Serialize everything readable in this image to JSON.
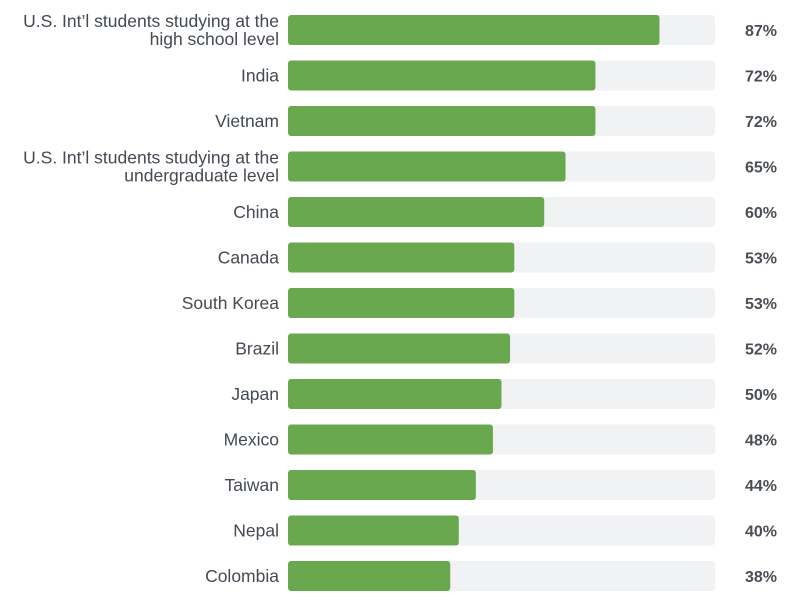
{
  "chart_data": {
    "type": "bar",
    "orientation": "horizontal",
    "categories": [
      [
        "U.S. Int’l students studying at the",
        "high school level"
      ],
      [
        "India"
      ],
      [
        "Vietnam"
      ],
      [
        "U.S. Int’l students studying at the",
        "undergraduate level"
      ],
      [
        "China"
      ],
      [
        "Canada"
      ],
      [
        "South Korea"
      ],
      [
        "Brazil"
      ],
      [
        "Japan"
      ],
      [
        "Mexico"
      ],
      [
        "Taiwan"
      ],
      [
        "Nepal"
      ],
      [
        "Colombia"
      ]
    ],
    "values": [
      87,
      72,
      72,
      65,
      60,
      53,
      53,
      52,
      50,
      48,
      44,
      40,
      38
    ],
    "value_labels": [
      "87%",
      "72%",
      "72%",
      "65%",
      "60%",
      "53%",
      "53%",
      "52%",
      "50%",
      "48%",
      "44%",
      "40%",
      "38%"
    ],
    "xlim": [
      0,
      100
    ],
    "title": "",
    "xlabel": "",
    "ylabel": "",
    "grid": false,
    "legend": "none",
    "colors": {
      "bar": "#6aa84f",
      "track": "#f1f2f4",
      "category_text": "#444a52",
      "value_text": "#4a4f56"
    }
  }
}
